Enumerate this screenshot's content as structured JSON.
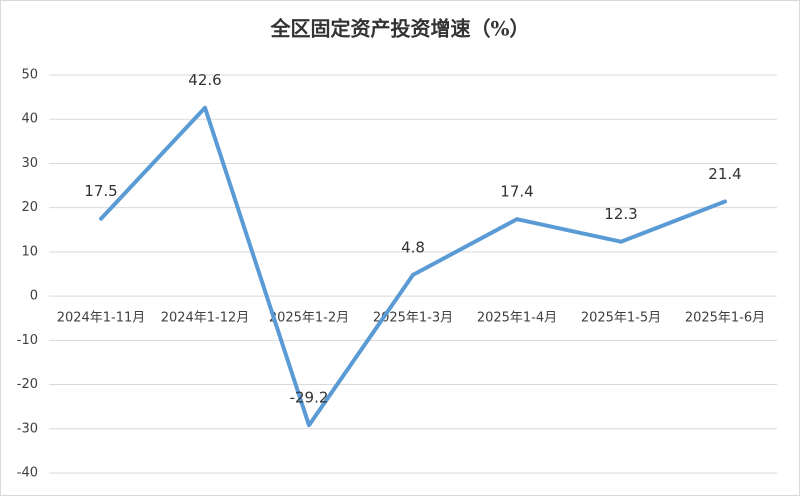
{
  "chart_data": {
    "type": "line",
    "title": "全区固定资产投资增速（%）",
    "categories": [
      "2024年1-11月",
      "2024年1-12月",
      "2025年1-2月",
      "2025年1-3月",
      "2025年1-4月",
      "2025年1-5月",
      "2025年1-6月"
    ],
    "values": [
      17.5,
      42.6,
      -29.2,
      4.8,
      17.4,
      12.3,
      21.4
    ],
    "color": "#5b9bd5",
    "ylim": [
      -40,
      50
    ],
    "yticks": [
      -40,
      -30,
      -20,
      -10,
      0,
      10,
      20,
      30,
      40,
      50
    ],
    "grid": true
  }
}
